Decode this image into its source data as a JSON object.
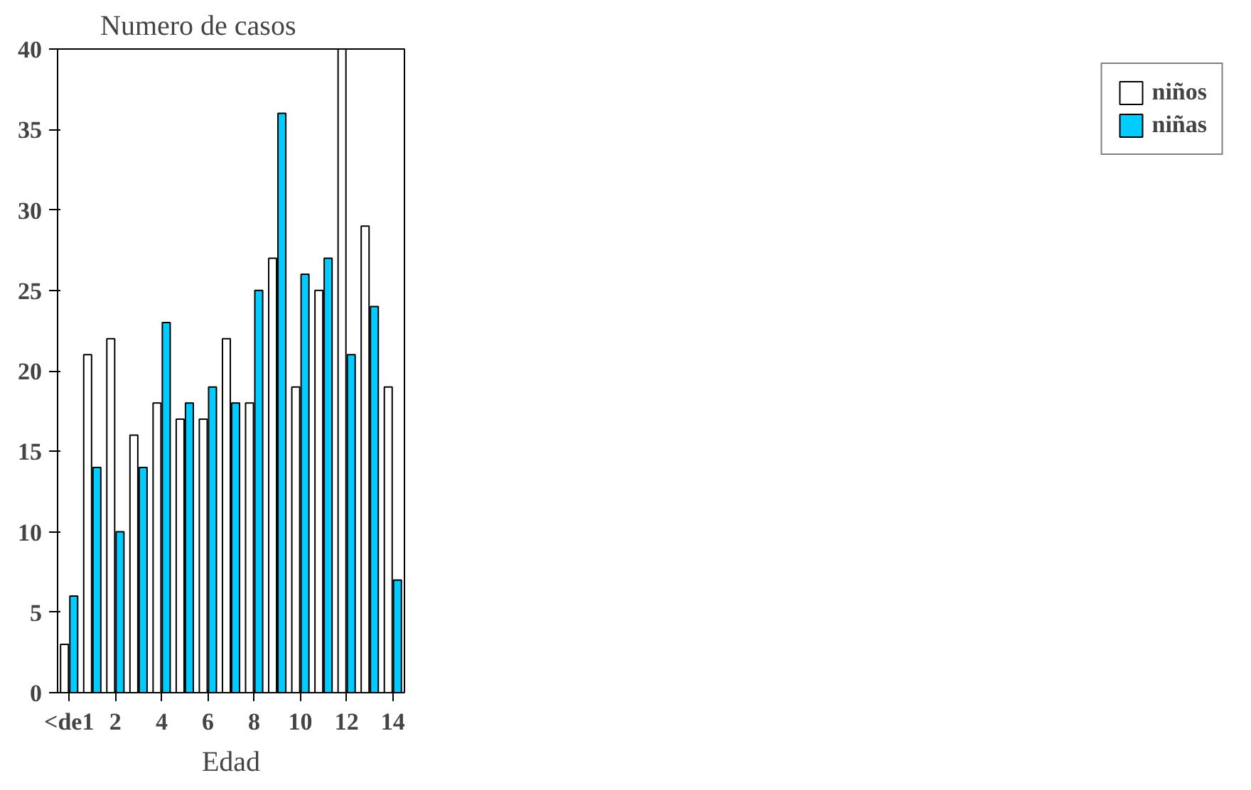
{
  "chart_data": {
    "type": "bar",
    "ylabel": "Numero de casos",
    "xlabel": "Edad",
    "categories": [
      "<de1",
      null,
      "2",
      null,
      "4",
      null,
      "6",
      null,
      "8",
      null,
      "10",
      null,
      "12",
      null,
      "14"
    ],
    "series": [
      {
        "name": "niños",
        "color": "#ffffff",
        "values": [
          3,
          21,
          22,
          16,
          18,
          17,
          17,
          22,
          18,
          27,
          19,
          25,
          40,
          29,
          19
        ]
      },
      {
        "name": "niñas",
        "color": "#00ccff",
        "values": [
          6,
          14,
          10,
          14,
          23,
          18,
          19,
          18,
          25,
          36,
          26,
          27,
          21,
          24,
          7
        ]
      }
    ],
    "ylim": [
      0,
      40
    ],
    "yticks": [
      0,
      5,
      10,
      15,
      20,
      25,
      30,
      35,
      40
    ],
    "grid": false,
    "legend": "right"
  }
}
